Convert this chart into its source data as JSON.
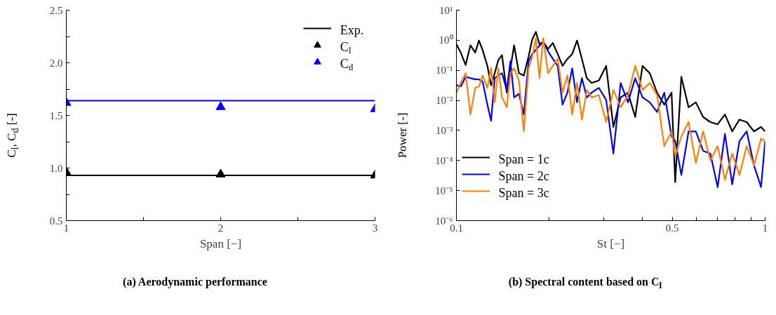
{
  "chart_data": [
    {
      "type": "line",
      "title": "(a) Aerodynamic performance",
      "xlabel": "Span [−]",
      "ylabel": "C$_{l}$, C$_{d}$ [-]",
      "x": [
        1,
        2,
        3
      ],
      "xlim": [
        1,
        3
      ],
      "xticks": [
        1,
        {
          "value": 1.5,
          "label": null
        },
        2,
        {
          "value": 2.5,
          "label": null
        },
        3
      ],
      "ylim": [
        0.5,
        2.5
      ],
      "yticks": [
        "0.5",
        {
          "value": 0.75,
          "label": null
        },
        {
          "value": 1.0,
          "label": "1.0"
        },
        {
          "value": 1.25,
          "label": null
        },
        {
          "value": 1.5,
          "label": "1.5"
        },
        {
          "value": 1.75,
          "label": null
        },
        {
          "value": 2.0,
          "label": "2.0"
        },
        {
          "value": 2.25,
          "label": null
        },
        {
          "value": 2.5,
          "label": "2.5"
        }
      ],
      "grid": false,
      "legend": "top right",
      "series": [
        {
          "name": "Exp.",
          "type": "line",
          "color": "#000000",
          "values": [
            0.93,
            0.93,
            0.93
          ]
        },
        {
          "type": "line",
          "color": "#0000ff",
          "values": [
            1.64,
            1.64,
            1.64
          ]
        },
        {
          "name": "C$_{l}$",
          "type": "scatter",
          "marker": "triangle",
          "color": "#000000",
          "values": [
            0.96,
            0.94,
            0.93
          ]
        },
        {
          "name": "C$_{d}$",
          "type": "scatter",
          "marker": "triangle",
          "color": "#0000ff",
          "values": [
            1.62,
            1.58,
            1.56
          ]
        }
      ]
    },
    {
      "type": "line",
      "title": "(b) Spectral content based on C$_{l}$",
      "xlabel": "St [−]",
      "ylabel": "Power [-]",
      "log": "xy",
      "x": [
        0.1,
        0.1033,
        0.1071,
        0.111,
        0.1151,
        0.1183,
        0.1216,
        0.126,
        0.1295,
        0.1331,
        0.1367,
        0.1405,
        0.1456,
        0.1496,
        0.1538,
        0.1594,
        0.1653,
        0.1713,
        0.1761,
        0.1809,
        0.1858,
        0.191,
        0.198,
        0.2053,
        0.2128,
        0.2207,
        0.2288,
        0.2372,
        0.2459,
        0.255,
        0.2644,
        0.2741,
        0.2893,
        0.3055,
        0.3225,
        0.3404,
        0.3594,
        0.3795,
        0.4007,
        0.423,
        0.4466,
        0.4713,
        0.4977,
        0.5114,
        0.5353,
        0.565,
        0.5964,
        0.6296,
        0.6646,
        0.7018,
        0.741,
        0.7823,
        0.8257,
        0.8716,
        0.9203,
        0.97,
        1.0
      ],
      "xlim": [
        0.1,
        1
      ],
      "xticks": [
        0.1,
        {
          "value": 0.2,
          "label": null
        },
        {
          "value": 0.3,
          "label": null
        },
        {
          "value": 0.4,
          "label": null
        },
        0.5,
        {
          "value": 0.6,
          "label": null
        },
        {
          "value": 0.7,
          "label": null
        },
        {
          "value": 0.8,
          "label": null
        },
        {
          "value": 0.9,
          "label": null
        },
        1
      ],
      "ylim": [
        1e-06,
        10
      ],
      "yticks": [
        {
          "value": 1e-06,
          "label": "10⁻⁶"
        },
        {
          "value": 1e-05,
          "label": "10⁻⁵"
        },
        {
          "value": 0.0001,
          "label": "10⁻⁴"
        },
        {
          "value": 0.001,
          "label": "10⁻³"
        },
        {
          "value": 0.01,
          "label": "10⁻²"
        },
        {
          "value": 0.1,
          "label": "10⁻¹"
        },
        {
          "value": 1,
          "label": "10⁰"
        },
        {
          "value": 10,
          "label": "10¹"
        }
      ],
      "grid": false,
      "legend": "bottom left",
      "series": [
        {
          "name": "Span = 1c",
          "color": "#000000",
          "values": [
            0.74,
            0.39,
            0.15,
            0.68,
            0.39,
            0.98,
            0.47,
            0.14,
            0.032,
            0.08,
            0.22,
            0.32,
            0.018,
            0.116,
            0.68,
            0.08,
            0.067,
            0.29,
            1.08,
            1.9,
            0.74,
            0.9,
            0.51,
            0.81,
            0.35,
            0.14,
            0.24,
            0.35,
            0.98,
            0.24,
            0.055,
            0.038,
            0.046,
            0.14,
            0.0013,
            0.0125,
            0.018,
            0.0028,
            0.14,
            0.08,
            0.018,
            0.0072,
            0.018,
            1.9e-05,
            0.061,
            0.0059,
            0.0086,
            0.0028,
            0.0019,
            0.0016,
            0.0034,
            0.00093,
            0.0023,
            0.0019,
            0.00093,
            0.0013,
            0.00093
          ]
        },
        {
          "name": "Span = 2c",
          "color": "#0000ff",
          "values": [
            0.032,
            0.029,
            0.061,
            0.055,
            0.05,
            0.05,
            0.042,
            0.0072,
            0.0021,
            0.055,
            0.067,
            0.08,
            0.022,
            0.2,
            0.0125,
            0.0165,
            0.0034,
            0.2,
            0.35,
            null,
            null,
            0.9,
            0.43,
            0.24,
            0.14,
            0.0072,
            0.018,
            0.116,
            0.0086,
            0.055,
            0.0125,
            0.018,
            0.026,
            0.0104,
            0.00017,
            0.038,
            0.0086,
            0.055,
            0.0125,
            0.0086,
            0.0041,
            0.018,
            0.00064,
            0.00044,
            3.3e-05,
            0.00093,
            0.00093,
            0.00021,
            0.00017,
            1.3e-05,
            0.00077,
            1.6e-05,
            0.00044,
            0.00093,
            6.9e-05,
            1.3e-05,
            0.00044
          ]
        },
        {
          "name": "Span = 3c",
          "color": "#ff8000",
          "values": [
            0.018,
            0.038,
            0.08,
            0.0034,
            0.026,
            0.029,
            0.067,
            0.026,
            0.116,
            0.0086,
            0.116,
            0.0125,
            0.0059,
            0.08,
            0.116,
            0.046,
            0.00093,
            0.116,
            0.29,
            1.18,
            0.055,
            1.18,
            0.08,
            0.14,
            0.24,
            0.018,
            0.067,
            0.0034,
            0.038,
            0.0023,
            0.022,
            0.0125,
            0.015,
            0.0019,
            0.022,
            0.0059,
            0.015,
            0.14,
            0.022,
            0.038,
            0.015,
            0.0003,
            0.00093,
            0.00014,
            0.00064,
            0.0019,
            8.3e-05,
            0.00093,
            0.0001,
            0.0003,
            2.3e-05,
            0.00017,
            3.3e-05,
            0.0003,
            6.9e-05,
            0.00053,
            0.00044
          ]
        }
      ]
    }
  ]
}
